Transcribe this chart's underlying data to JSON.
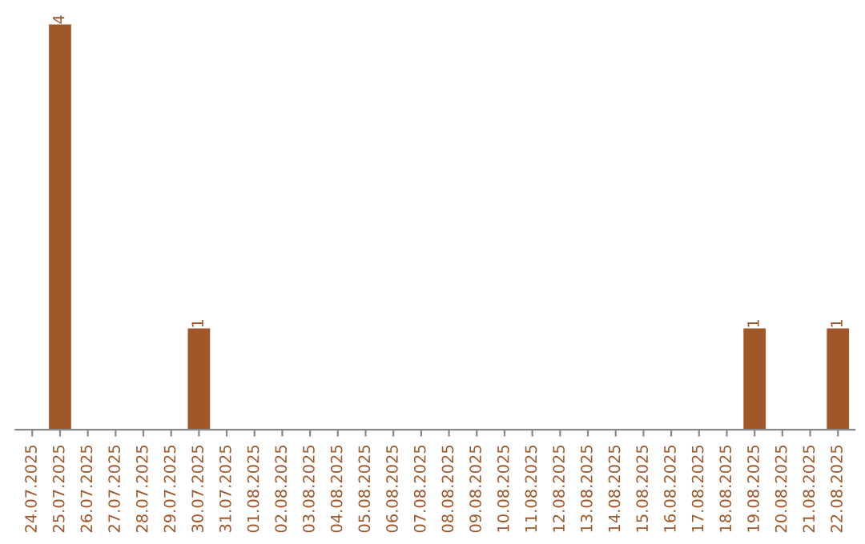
{
  "chart_data": {
    "type": "bar",
    "categories": [
      "24.07.2025",
      "25.07.2025",
      "26.07.2025",
      "27.07.2025",
      "28.07.2025",
      "29.07.2025",
      "30.07.2025",
      "31.07.2025",
      "01.08.2025",
      "02.08.2025",
      "03.08.2025",
      "04.08.2025",
      "05.08.2025",
      "06.08.2025",
      "07.08.2025",
      "08.08.2025",
      "09.08.2025",
      "10.08.2025",
      "11.08.2025",
      "12.08.2025",
      "13.08.2025",
      "14.08.2025",
      "15.08.2025",
      "16.08.2025",
      "17.08.2025",
      "18.08.2025",
      "19.08.2025",
      "20.08.2025",
      "21.08.2025",
      "22.08.2025"
    ],
    "values": [
      0,
      4,
      0,
      0,
      0,
      0,
      1,
      0,
      0,
      0,
      0,
      0,
      0,
      0,
      0,
      0,
      0,
      0,
      0,
      0,
      0,
      0,
      0,
      0,
      0,
      0,
      1,
      0,
      0,
      1
    ],
    "value_labels": [
      null,
      "4",
      null,
      null,
      null,
      null,
      "1",
      null,
      null,
      null,
      null,
      null,
      null,
      null,
      null,
      null,
      null,
      null,
      null,
      null,
      null,
      null,
      null,
      null,
      null,
      null,
      "1",
      null,
      null,
      "1"
    ],
    "color": "#a0572a",
    "grid": false,
    "legend": false
  }
}
